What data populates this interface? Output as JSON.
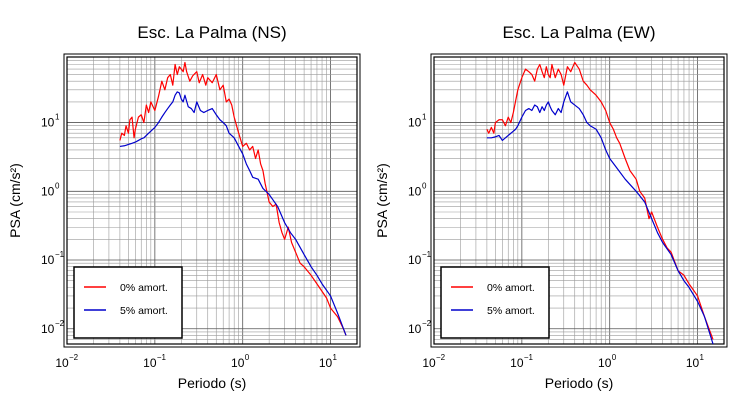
{
  "chart_data": [
    {
      "type": "line",
      "title": "Esc. La Palma (NS)",
      "xlabel": "Periodo (s)",
      "ylabel": "PSA (cm/s²)",
      "xscale": "log",
      "yscale": "log",
      "xlim": [
        0.01,
        20
      ],
      "ylim": [
        0.006,
        90
      ],
      "xticks": [
        {
          "base": "10",
          "exp": "−2"
        },
        {
          "base": "10",
          "exp": "−1"
        },
        {
          "base": "10",
          "exp": "0"
        },
        {
          "base": "10",
          "exp": "1"
        }
      ],
      "yticks": [
        {
          "base": "10",
          "exp": "−2"
        },
        {
          "base": "10",
          "exp": "−1"
        },
        {
          "base": "10",
          "exp": "0"
        },
        {
          "base": "10",
          "exp": "1"
        }
      ],
      "grid": true,
      "legend_position": "bottom-left",
      "series": [
        {
          "name": "0% amort.",
          "color": "#ff0000",
          "x": [
            0.04,
            0.042,
            0.045,
            0.047,
            0.05,
            0.052,
            0.055,
            0.058,
            0.06,
            0.065,
            0.07,
            0.075,
            0.08,
            0.085,
            0.09,
            0.1,
            0.11,
            0.12,
            0.13,
            0.14,
            0.15,
            0.16,
            0.17,
            0.18,
            0.19,
            0.2,
            0.21,
            0.22,
            0.23,
            0.25,
            0.27,
            0.3,
            0.32,
            0.35,
            0.38,
            0.4,
            0.45,
            0.5,
            0.55,
            0.6,
            0.65,
            0.7,
            0.75,
            0.8,
            0.9,
            1.0,
            1.1,
            1.2,
            1.3,
            1.4,
            1.5,
            1.6,
            1.7,
            1.8,
            2.0,
            2.2,
            2.4,
            2.6,
            2.8,
            3.0,
            3.3,
            3.6,
            4.0,
            4.5,
            5.0,
            6.0,
            7.0,
            8.0,
            9.0,
            10.0,
            12.0,
            14.0,
            15.0
          ],
          "y": [
            5.5,
            7,
            6.5,
            9,
            7,
            11,
            12,
            6,
            8,
            12,
            13,
            10,
            18,
            14,
            20,
            15,
            24,
            40,
            30,
            45,
            50,
            35,
            70,
            50,
            65,
            60,
            55,
            75,
            55,
            40,
            48,
            55,
            38,
            50,
            35,
            45,
            38,
            50,
            30,
            35,
            20,
            22,
            18,
            12,
            7,
            4.5,
            5,
            4,
            4.5,
            3,
            4,
            2.5,
            2,
            1.3,
            0.7,
            0.6,
            0.65,
            0.35,
            0.25,
            0.2,
            0.3,
            0.18,
            0.13,
            0.09,
            0.08,
            0.06,
            0.045,
            0.035,
            0.028,
            0.02,
            0.015,
            0.01,
            0.008
          ]
        },
        {
          "name": "5% amort.",
          "color": "#0000cc",
          "x": [
            0.04,
            0.045,
            0.05,
            0.055,
            0.06,
            0.065,
            0.07,
            0.075,
            0.08,
            0.085,
            0.09,
            0.1,
            0.11,
            0.12,
            0.13,
            0.14,
            0.15,
            0.16,
            0.17,
            0.18,
            0.19,
            0.2,
            0.21,
            0.22,
            0.24,
            0.26,
            0.28,
            0.3,
            0.33,
            0.36,
            0.4,
            0.45,
            0.5,
            0.55,
            0.6,
            0.65,
            0.7,
            0.8,
            0.9,
            1.0,
            1.1,
            1.2,
            1.3,
            1.5,
            1.7,
            2.0,
            2.5,
            3.0,
            3.5,
            4.0,
            5.0,
            6.0,
            7.0,
            8.0,
            10.0,
            12.0,
            15.0
          ],
          "y": [
            4.5,
            4.6,
            4.8,
            5,
            5.2,
            5.5,
            5.8,
            6,
            6.5,
            7,
            7.5,
            8.5,
            10,
            12,
            14,
            16,
            18,
            20,
            25,
            28,
            27,
            22,
            20,
            25,
            17,
            16,
            14,
            20,
            15,
            14,
            15,
            16,
            13,
            11,
            10,
            9,
            7,
            6,
            4.5,
            3.5,
            2.5,
            2,
            1.6,
            1.5,
            1.1,
            0.9,
            0.6,
            0.35,
            0.25,
            0.2,
            0.12,
            0.08,
            0.06,
            0.045,
            0.03,
            0.017,
            0.008
          ]
        }
      ]
    },
    {
      "type": "line",
      "title": "Esc. La Palma (EW)",
      "xlabel": "Periodo (s)",
      "ylabel": "PSA (cm/s²)",
      "xscale": "log",
      "yscale": "log",
      "xlim": [
        0.01,
        20
      ],
      "ylim": [
        0.006,
        90
      ],
      "xticks": [
        {
          "base": "10",
          "exp": "−2"
        },
        {
          "base": "10",
          "exp": "−1"
        },
        {
          "base": "10",
          "exp": "0"
        },
        {
          "base": "10",
          "exp": "1"
        }
      ],
      "yticks": [
        {
          "base": "10",
          "exp": "−2"
        },
        {
          "base": "10",
          "exp": "−1"
        },
        {
          "base": "10",
          "exp": "0"
        },
        {
          "base": "10",
          "exp": "1"
        }
      ],
      "grid": true,
      "legend_position": "bottom-left",
      "series": [
        {
          "name": "0% amort.",
          "color": "#ff0000",
          "x": [
            0.04,
            0.042,
            0.045,
            0.048,
            0.05,
            0.055,
            0.06,
            0.065,
            0.07,
            0.075,
            0.08,
            0.09,
            0.1,
            0.11,
            0.12,
            0.13,
            0.14,
            0.15,
            0.16,
            0.17,
            0.18,
            0.19,
            0.2,
            0.21,
            0.22,
            0.24,
            0.26,
            0.28,
            0.3,
            0.33,
            0.36,
            0.4,
            0.45,
            0.5,
            0.55,
            0.6,
            0.7,
            0.8,
            0.9,
            1.0,
            1.1,
            1.2,
            1.3,
            1.5,
            1.7,
            2.0,
            2.2,
            2.5,
            2.8,
            3.0,
            3.5,
            4.0,
            4.5,
            5.0,
            6.0,
            7.0,
            8.0,
            10.0,
            12.0,
            15.0
          ],
          "y": [
            8,
            7,
            8.5,
            7,
            10,
            11,
            11,
            9,
            12,
            10,
            14,
            30,
            45,
            60,
            55,
            50,
            40,
            60,
            70,
            55,
            45,
            65,
            50,
            45,
            70,
            45,
            60,
            50,
            35,
            65,
            55,
            75,
            60,
            40,
            35,
            30,
            25,
            20,
            15,
            10,
            8,
            6,
            5,
            3,
            2,
            1.5,
            1,
            0.8,
            0.4,
            0.5,
            0.3,
            0.2,
            0.15,
            0.13,
            0.07,
            0.06,
            0.045,
            0.03,
            0.015,
            0.007
          ]
        },
        {
          "name": "5% amort.",
          "color": "#0000cc",
          "x": [
            0.04,
            0.045,
            0.05,
            0.055,
            0.06,
            0.065,
            0.07,
            0.075,
            0.08,
            0.085,
            0.09,
            0.1,
            0.11,
            0.12,
            0.13,
            0.14,
            0.15,
            0.16,
            0.17,
            0.18,
            0.19,
            0.2,
            0.21,
            0.22,
            0.24,
            0.26,
            0.28,
            0.3,
            0.33,
            0.36,
            0.4,
            0.45,
            0.5,
            0.55,
            0.6,
            0.7,
            0.8,
            0.9,
            1.0,
            1.2,
            1.5,
            2.0,
            2.5,
            3.0,
            3.5,
            4.0,
            5.0,
            6.0,
            7.0,
            8.0,
            10.0,
            12.0,
            15.0
          ],
          "y": [
            6,
            6,
            6.2,
            6.5,
            5.5,
            6,
            6.5,
            7,
            7.5,
            8,
            9,
            12,
            15,
            16,
            15,
            18,
            17,
            14,
            17,
            15,
            18,
            20,
            17,
            15,
            13,
            16,
            14,
            20,
            28,
            20,
            18,
            16,
            13,
            10,
            9,
            8,
            6,
            4,
            3,
            2.2,
            1.5,
            1,
            0.7,
            0.4,
            0.25,
            0.18,
            0.12,
            0.07,
            0.05,
            0.04,
            0.025,
            0.015,
            0.006
          ]
        }
      ]
    }
  ]
}
